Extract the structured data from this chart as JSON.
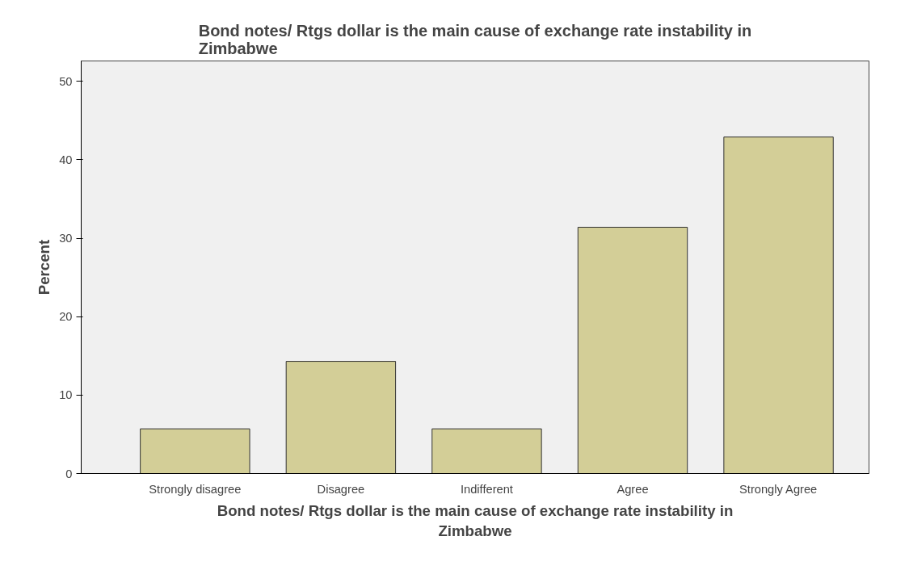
{
  "chart_data": {
    "type": "bar",
    "title": "Bond notes/ Rtgs dollar is the main cause of exchange rate instability in\nZimbabwe",
    "xlabel": "Bond notes/ Rtgs dollar is the main cause of exchange rate instability in\nZimbabwe",
    "ylabel": "Percent",
    "categories": [
      "Strongly disagree",
      "Disagree",
      "Indifferent",
      "Agree",
      "Strongly Agree"
    ],
    "values": [
      5.7,
      14.3,
      5.7,
      31.4,
      42.9
    ],
    "color": "#d3ce97",
    "ylim": [
      0,
      52.6
    ],
    "yticks": [
      0,
      10,
      20,
      30,
      40,
      50
    ]
  }
}
